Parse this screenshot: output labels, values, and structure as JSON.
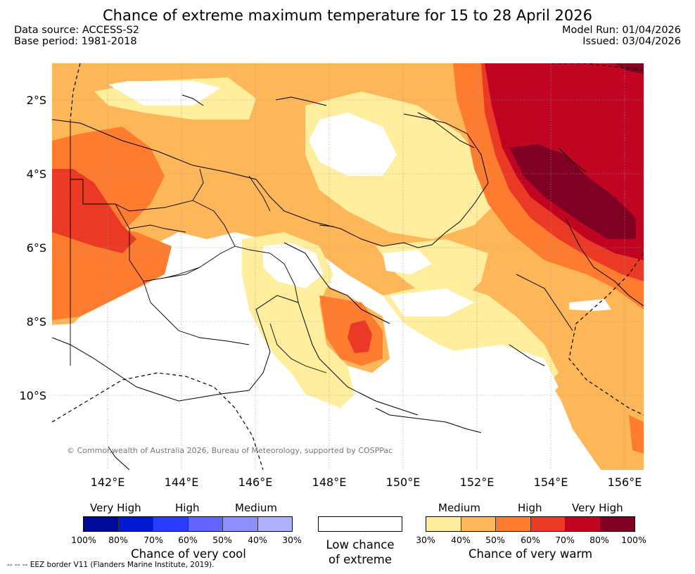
{
  "title": "Chance of extreme maximum temperature for 15 to 28 April 2026",
  "meta": {
    "data_source": "Data source: ACCESS-S2",
    "base_period": "Base period: 1981-2018",
    "model_run": "Model Run: 01/04/2026",
    "issued": "Issued: 03/04/2026"
  },
  "axes": {
    "lat_labels": [
      "2°S",
      "4°S",
      "6°S",
      "8°S",
      "10°S"
    ],
    "lon_labels": [
      "142°E",
      "144°E",
      "146°E",
      "148°E",
      "150°E",
      "152°E",
      "154°E",
      "156°E"
    ]
  },
  "copyright": "© Commonwealth of Australia 2026, Bureau of Meteorology, supported by COSPPac",
  "legend": {
    "cool": {
      "levels": [
        "Very High",
        "High",
        "Medium"
      ],
      "ticks": [
        "100%",
        "80%",
        "70%",
        "60%",
        "50%",
        "40%",
        "30%"
      ],
      "colors": [
        "#000a99",
        "#0019d1",
        "#2a3dff",
        "#6266ff",
        "#8d8fff",
        "#b1b0ff"
      ],
      "title": "Chance of very cool"
    },
    "low": {
      "line1": "Low chance",
      "line2": "of extreme"
    },
    "warm": {
      "levels": [
        "Medium",
        "High",
        "Very High"
      ],
      "ticks": [
        "30%",
        "40%",
        "50%",
        "60%",
        "70%",
        "80%",
        "100%"
      ],
      "colors": [
        "#ffee9e",
        "#fdb758",
        "#fd7c30",
        "#ea3a26",
        "#c00422",
        "#7f0022"
      ],
      "title": "Chance of very warm"
    }
  },
  "footnote": "-- -- -- EEZ border V11 (Flanders Marine Institute, 2019)."
}
